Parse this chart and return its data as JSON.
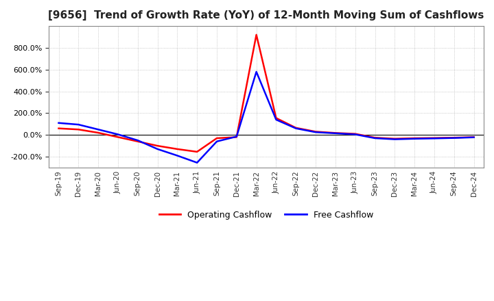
{
  "title": "[9656]  Trend of Growth Rate (YoY) of 12-Month Moving Sum of Cashflows",
  "title_fontsize": 11,
  "legend_entries": [
    "Operating Cashflow",
    "Free Cashflow"
  ],
  "legend_colors": [
    "#ff0000",
    "#0000ff"
  ],
  "x_labels": [
    "Sep-19",
    "Dec-19",
    "Mar-20",
    "Jun-20",
    "Sep-20",
    "Dec-20",
    "Mar-21",
    "Jun-21",
    "Sep-21",
    "Dec-21",
    "Mar-22",
    "Jun-22",
    "Sep-22",
    "Dec-22",
    "Mar-23",
    "Jun-23",
    "Sep-23",
    "Dec-23",
    "Mar-24",
    "Jun-24",
    "Sep-24",
    "Dec-24"
  ],
  "operating_cashflow": [
    60,
    50,
    20,
    -20,
    -60,
    -100,
    -130,
    -155,
    -30,
    -20,
    920,
    155,
    65,
    30,
    18,
    10,
    -25,
    -35,
    -30,
    -28,
    -25,
    -20
  ],
  "free_cashflow": [
    110,
    95,
    50,
    5,
    -50,
    -130,
    -190,
    -255,
    -60,
    -15,
    580,
    140,
    60,
    25,
    15,
    5,
    -30,
    -40,
    -35,
    -32,
    -28,
    -22
  ],
  "ylim": [
    -300,
    1000
  ],
  "yticks": [
    -200,
    0,
    200,
    400,
    600,
    800
  ],
  "grid_color": "#aaaaaa",
  "background_color": "#ffffff",
  "line_width": 1.8
}
